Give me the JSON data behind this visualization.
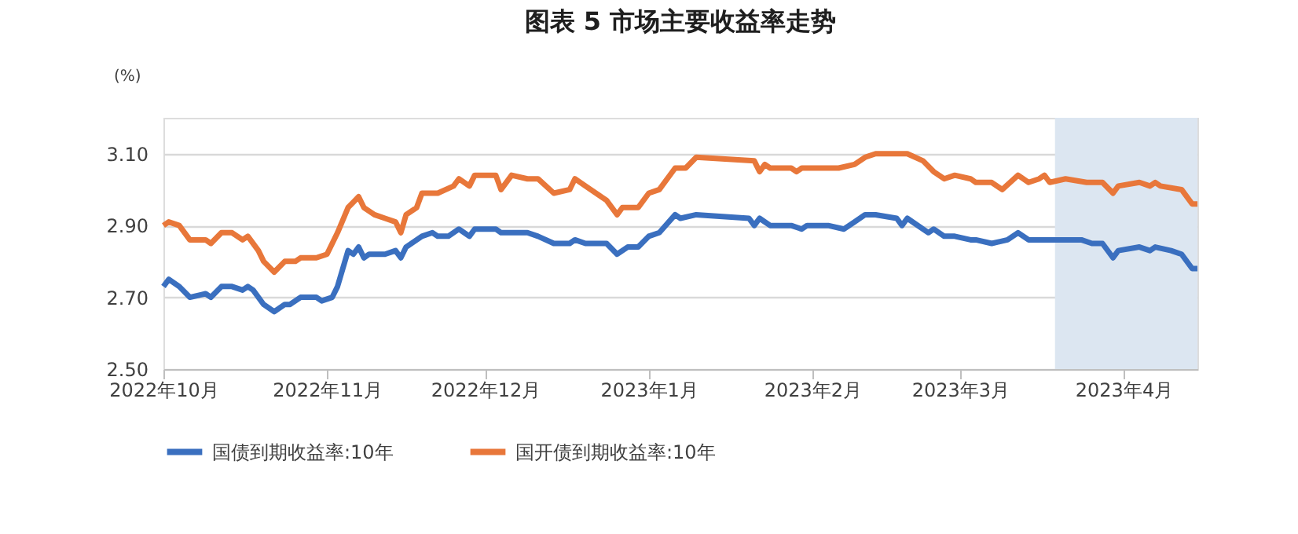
{
  "chart_data": {
    "type": "line",
    "title": "图表 5  市场主要收益率走势",
    "ylabel": "(%)",
    "xlim": [
      "2022-10-01",
      "2023-04-15"
    ],
    "xticks": [
      {
        "value": "2022-10-01",
        "label": "2022年10月"
      },
      {
        "value": "2022-11-01",
        "label": "2022年11月"
      },
      {
        "value": "2022-12-01",
        "label": "2022年12月"
      },
      {
        "value": "2023-01-01",
        "label": "2023年1月"
      },
      {
        "value": "2023-02-01",
        "label": "2023年2月"
      },
      {
        "value": "2023-03-01",
        "label": "2023年3月"
      },
      {
        "value": "2023-04-01",
        "label": "2023年4月"
      }
    ],
    "ylim": [
      2.5,
      3.2
    ],
    "yticks": [
      {
        "value": 2.5,
        "label": "2.50"
      },
      {
        "value": 2.7,
        "label": "2.70"
      },
      {
        "value": 2.9,
        "label": "2.90"
      },
      {
        "value": 3.1,
        "label": "3.10"
      }
    ],
    "grid": "y",
    "legend": "bottom",
    "marker": "none",
    "line_style": "solid",
    "bands": [
      {
        "axis": "x",
        "from": "2023-03-19",
        "to": "2023-04-15",
        "color": "#dce6f1"
      }
    ],
    "series": [
      {
        "name": "国债到期收益率:10年",
        "color": "#3a6fbf",
        "x": [
          "2022-10-01",
          "2022-10-02",
          "2022-10-04",
          "2022-10-06",
          "2022-10-09",
          "2022-10-10",
          "2022-10-12",
          "2022-10-14",
          "2022-10-16",
          "2022-10-17",
          "2022-10-18",
          "2022-10-20",
          "2022-10-22",
          "2022-10-24",
          "2022-10-25",
          "2022-10-27",
          "2022-10-30",
          "2022-10-31",
          "2022-11-02",
          "2022-11-03",
          "2022-11-05",
          "2022-11-06",
          "2022-11-07",
          "2022-11-08",
          "2022-11-09",
          "2022-11-12",
          "2022-11-14",
          "2022-11-15",
          "2022-11-16",
          "2022-11-19",
          "2022-11-21",
          "2022-11-22",
          "2022-11-24",
          "2022-11-26",
          "2022-11-28",
          "2022-11-29",
          "2022-12-03",
          "2022-12-04",
          "2022-12-06",
          "2022-12-09",
          "2022-12-11",
          "2022-12-14",
          "2022-12-17",
          "2022-12-18",
          "2022-12-20",
          "2022-12-24",
          "2022-12-26",
          "2022-12-28",
          "2022-12-30",
          "2023-01-01",
          "2023-01-03",
          "2023-01-06",
          "2023-01-07",
          "2023-01-10",
          "2023-01-20",
          "2023-01-21",
          "2023-01-22",
          "2023-01-24",
          "2023-01-28",
          "2023-01-30",
          "2023-01-31",
          "2023-02-04",
          "2023-02-07",
          "2023-02-09",
          "2023-02-11",
          "2023-02-13",
          "2023-02-17",
          "2023-02-18",
          "2023-02-19",
          "2023-02-23",
          "2023-02-24",
          "2023-02-26",
          "2023-02-28",
          "2023-03-03",
          "2023-03-04",
          "2023-03-07",
          "2023-03-10",
          "2023-03-12",
          "2023-03-14",
          "2023-03-16",
          "2023-03-17",
          "2023-03-18",
          "2023-03-21",
          "2023-03-24",
          "2023-03-26",
          "2023-03-28",
          "2023-03-30",
          "2023-03-31",
          "2023-04-04",
          "2023-04-06",
          "2023-04-07",
          "2023-04-10",
          "2023-04-12",
          "2023-04-14",
          "2023-04-15"
        ],
        "values": [
          2.73,
          2.75,
          2.73,
          2.7,
          2.71,
          2.7,
          2.73,
          2.73,
          2.72,
          2.73,
          2.72,
          2.68,
          2.66,
          2.68,
          2.68,
          2.7,
          2.7,
          2.69,
          2.7,
          2.73,
          2.83,
          2.82,
          2.84,
          2.81,
          2.82,
          2.82,
          2.83,
          2.81,
          2.84,
          2.87,
          2.88,
          2.87,
          2.87,
          2.89,
          2.87,
          2.89,
          2.89,
          2.88,
          2.88,
          2.88,
          2.87,
          2.85,
          2.85,
          2.86,
          2.85,
          2.85,
          2.82,
          2.84,
          2.84,
          2.87,
          2.88,
          2.93,
          2.92,
          2.93,
          2.92,
          2.9,
          2.92,
          2.9,
          2.9,
          2.89,
          2.9,
          2.9,
          2.89,
          2.91,
          2.93,
          2.93,
          2.92,
          2.9,
          2.92,
          2.88,
          2.89,
          2.87,
          2.87,
          2.86,
          2.86,
          2.85,
          2.86,
          2.88,
          2.86,
          2.86,
          2.86,
          2.86,
          2.86,
          2.86,
          2.85,
          2.85,
          2.81,
          2.83,
          2.84,
          2.83,
          2.84,
          2.83,
          2.82,
          2.78,
          2.78
        ]
      },
      {
        "name": "国开债到期收益率:10年",
        "color": "#e8773a",
        "x": [
          "2022-10-01",
          "2022-10-02",
          "2022-10-04",
          "2022-10-06",
          "2022-10-09",
          "2022-10-10",
          "2022-10-12",
          "2022-10-14",
          "2022-10-16",
          "2022-10-17",
          "2022-10-19",
          "2022-10-20",
          "2022-10-22",
          "2022-10-24",
          "2022-10-26",
          "2022-10-27",
          "2022-10-30",
          "2022-11-01",
          "2022-11-03",
          "2022-11-05",
          "2022-11-07",
          "2022-11-08",
          "2022-11-10",
          "2022-11-12",
          "2022-11-14",
          "2022-11-15",
          "2022-11-16",
          "2022-11-18",
          "2022-11-19",
          "2022-11-22",
          "2022-11-25",
          "2022-11-26",
          "2022-11-28",
          "2022-11-29",
          "2022-12-03",
          "2022-12-04",
          "2022-12-06",
          "2022-12-09",
          "2022-12-11",
          "2022-12-14",
          "2022-12-17",
          "2022-12-18",
          "2022-12-20",
          "2022-12-23",
          "2022-12-24",
          "2022-12-26",
          "2022-12-27",
          "2022-12-30",
          "2023-01-01",
          "2023-01-03",
          "2023-01-06",
          "2023-01-08",
          "2023-01-10",
          "2023-01-21",
          "2023-01-22",
          "2023-01-23",
          "2023-01-24",
          "2023-01-28",
          "2023-01-29",
          "2023-01-30",
          "2023-01-31",
          "2023-02-06",
          "2023-02-09",
          "2023-02-11",
          "2023-02-13",
          "2023-02-17",
          "2023-02-19",
          "2023-02-22",
          "2023-02-24",
          "2023-02-26",
          "2023-02-28",
          "2023-03-03",
          "2023-03-04",
          "2023-03-07",
          "2023-03-09",
          "2023-03-12",
          "2023-03-14",
          "2023-03-16",
          "2023-03-17",
          "2023-03-18",
          "2023-03-21",
          "2023-03-25",
          "2023-03-28",
          "2023-03-30",
          "2023-03-31",
          "2023-04-04",
          "2023-04-06",
          "2023-04-07",
          "2023-04-08",
          "2023-04-12",
          "2023-04-14",
          "2023-04-15"
        ],
        "values": [
          2.9,
          2.91,
          2.9,
          2.86,
          2.86,
          2.85,
          2.88,
          2.88,
          2.86,
          2.87,
          2.83,
          2.8,
          2.77,
          2.8,
          2.8,
          2.81,
          2.81,
          2.82,
          2.88,
          2.95,
          2.98,
          2.95,
          2.93,
          2.92,
          2.91,
          2.88,
          2.93,
          2.95,
          2.99,
          2.99,
          3.01,
          3.03,
          3.01,
          3.04,
          3.04,
          3.0,
          3.04,
          3.03,
          3.03,
          2.99,
          3.0,
          3.03,
          3.01,
          2.98,
          2.97,
          2.93,
          2.95,
          2.95,
          2.99,
          3.0,
          3.06,
          3.06,
          3.09,
          3.08,
          3.05,
          3.07,
          3.06,
          3.06,
          3.05,
          3.06,
          3.06,
          3.06,
          3.07,
          3.09,
          3.1,
          3.1,
          3.1,
          3.08,
          3.05,
          3.03,
          3.04,
          3.03,
          3.02,
          3.02,
          3.0,
          3.04,
          3.02,
          3.03,
          3.04,
          3.02,
          3.03,
          3.02,
          3.02,
          2.99,
          3.01,
          3.02,
          3.01,
          3.02,
          3.01,
          3.0,
          2.96,
          2.96
        ]
      }
    ]
  }
}
